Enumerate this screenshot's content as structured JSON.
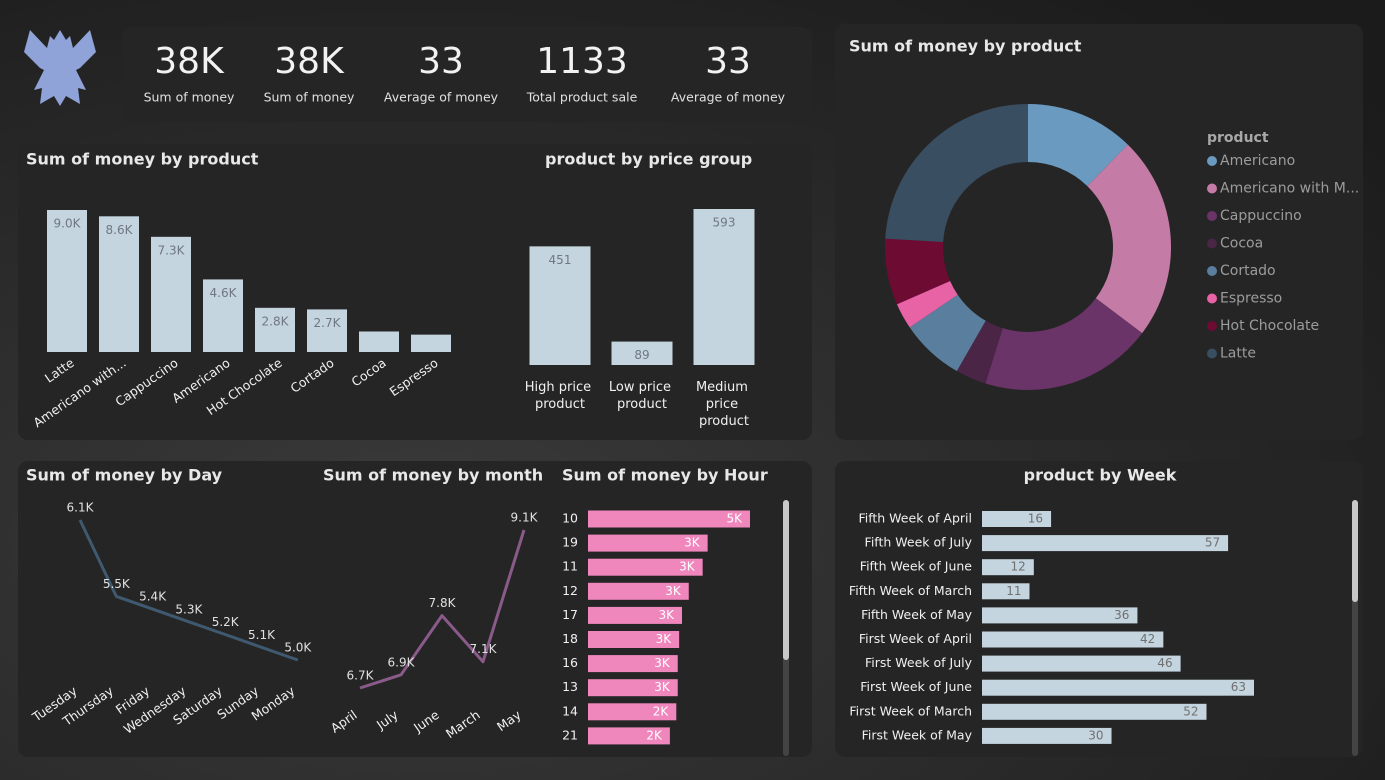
{
  "kpis": [
    {
      "value": "38K",
      "label": "Sum of money"
    },
    {
      "value": "38K",
      "label": "Sum of money"
    },
    {
      "value": "33",
      "label": "Average of money"
    },
    {
      "value": "1133",
      "label": "Total product sale"
    },
    {
      "value": "33",
      "label": "Average of money"
    }
  ],
  "chart_data": [
    {
      "type": "bar",
      "title": "Sum of money by product",
      "categories": [
        "Latte",
        "Americano with...",
        "Cappuccino",
        "Americano",
        "Hot Chocolate",
        "Cortado",
        "Cocoa",
        "Espresso"
      ],
      "values": [
        9000,
        8600,
        7300,
        4600,
        2800,
        2700,
        1300,
        1100
      ],
      "value_labels": [
        "9.0K",
        "8.6K",
        "7.3K",
        "4.6K",
        "2.8K",
        "2.7K",
        null,
        null
      ],
      "color": "#c5d5df"
    },
    {
      "type": "bar",
      "title": "product by price group",
      "categories": [
        "High price product",
        "Low price product",
        "Medium price product"
      ],
      "values": [
        451,
        89,
        593
      ],
      "color": "#c5d5df"
    },
    {
      "type": "pie",
      "title": "Sum of money by product",
      "legend_title": "product",
      "categories": [
        "Americano",
        "Americano with M...",
        "Cappuccino",
        "Cocoa",
        "Cortado",
        "Espresso",
        "Hot Chocolate",
        "Latte"
      ],
      "values": [
        4600,
        8600,
        7300,
        1300,
        2700,
        1100,
        2800,
        9000
      ],
      "colors": [
        "#6b9ac0",
        "#c47ba6",
        "#6a3468",
        "#4a2545",
        "#5a7f9e",
        "#e862a6",
        "#6e0b33",
        "#3a4e61"
      ]
    },
    {
      "type": "line",
      "title": "Sum of money by Day",
      "categories": [
        "Tuesday",
        "Thursday",
        "Friday",
        "Wednesday",
        "Saturday",
        "Sunday",
        "Monday"
      ],
      "values": [
        6100,
        5500,
        5400,
        5300,
        5200,
        5100,
        5000
      ],
      "value_labels": [
        "6.1K",
        "5.5K",
        "5.4K",
        "5.3K",
        "5.2K",
        "5.1K",
        "5.0K"
      ],
      "color": "#3f5a70"
    },
    {
      "type": "line",
      "title": "Sum of money by month",
      "categories": [
        "April",
        "July",
        "June",
        "March",
        "May"
      ],
      "values": [
        6700,
        6900,
        7800,
        7100,
        9100
      ],
      "value_labels": [
        "6.7K",
        "6.9K",
        "7.8K",
        "7.1K",
        "9.1K"
      ],
      "color": "#8a5a8a"
    },
    {
      "type": "hbar",
      "title": "Sum of money by Hour",
      "categories": [
        "10",
        "19",
        "11",
        "12",
        "17",
        "18",
        "16",
        "13",
        "14",
        "21"
      ],
      "values": [
        4550,
        3360,
        3220,
        2830,
        2640,
        2560,
        2520,
        2520,
        2480,
        2300
      ],
      "value_labels": [
        "5K",
        "3K",
        "3K",
        "3K",
        "3K",
        "3K",
        "3K",
        "3K",
        "2K",
        "2K"
      ],
      "color": "#ef87bd"
    },
    {
      "type": "hbar",
      "title": "product by Week",
      "categories": [
        "Fifth Week of April",
        "Fifth Week of July",
        "Fifth Week of June",
        "Fifth Week of March",
        "Fifth Week of May",
        "First Week of April",
        "First Week of July",
        "First Week of June",
        "First Week of March",
        "First Week of May"
      ],
      "values": [
        16,
        57,
        12,
        11,
        36,
        42,
        46,
        63,
        52,
        30
      ],
      "color": "#c5d5df"
    }
  ]
}
